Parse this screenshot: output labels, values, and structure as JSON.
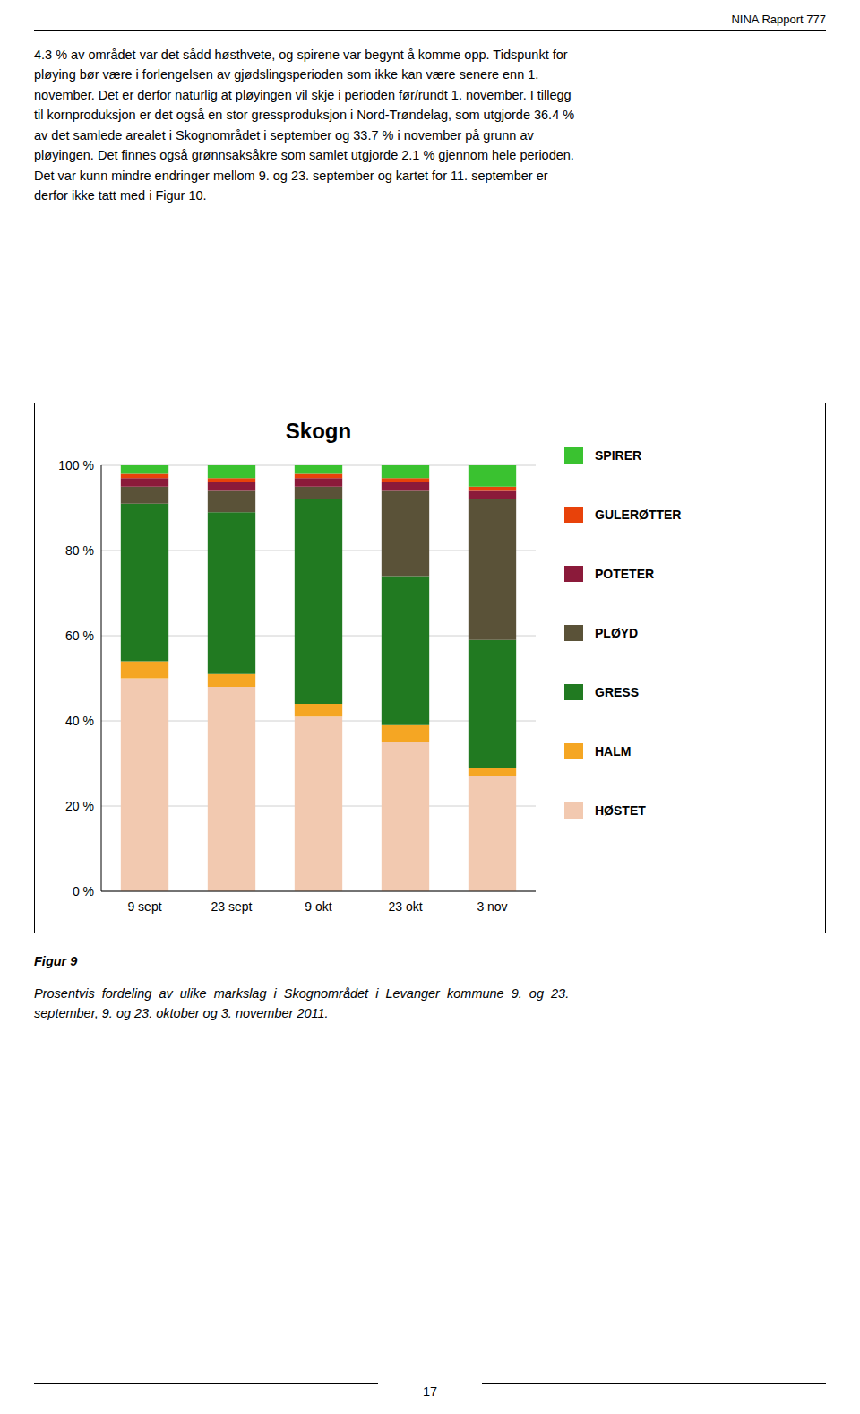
{
  "header_label": "NINA Rapport 777",
  "header_text": "4.3 % av området var det sådd høsthvete, og spirene var begynt å komme opp. Tidspunkt for\npløying bør være i forlengelsen av gjødslingsperioden som ikke kan være senere enn 1.\nnovember. Det er derfor naturlig at pløyingen vil skje i perioden før/rundt 1. november. I tillegg\ntil kornproduksjon er det også en stor gressproduksjon i Nord-Trøndelag, som utgjorde 36.4 %\nav det samlede arealet i Skognområdet i september og 33.7 % i november på grunn av\npløyingen. Det finnes også grønnsaksåkre som samlet utgjorde 2.1 % gjennom hele perioden.\nDet var kunn mindre endringer mellom 9. og 23. september og kartet for 11. september er\nderfor ikke tatt med i Figur 10.",
  "figure_label": "Figur 9",
  "caption_text": "Prosentvis  fordeling  av  ulike  markslag  i  Skognområdet  i  Levanger  kommune  9.  og  23.\nseptember, 9. og 23. oktober og 3. november 2011.",
  "page_number": "17",
  "chart_data": {
    "type": "bar",
    "stacked": true,
    "title": "Skogn",
    "categories": [
      "9 sept",
      "23 sept",
      "9 okt",
      "23 okt",
      "3 nov"
    ],
    "series": [
      {
        "name": "HØSTET",
        "color": "#F2C9B0",
        "values": [
          50,
          48,
          41,
          35,
          27
        ]
      },
      {
        "name": "HALM",
        "color": "#F5A623",
        "values": [
          4,
          3,
          3,
          4,
          2
        ]
      },
      {
        "name": "GRESS",
        "color": "#217A21",
        "values": [
          37,
          38,
          48,
          35,
          30
        ]
      },
      {
        "name": "PLØYD",
        "color": "#5A5238",
        "values": [
          4,
          5,
          3,
          20,
          33
        ]
      },
      {
        "name": "POTETER",
        "color": "#8B1A3A",
        "values": [
          2,
          2,
          2,
          2,
          2
        ]
      },
      {
        "name": "GULERØTTER",
        "color": "#E8420A",
        "values": [
          1,
          1,
          1,
          1,
          1
        ]
      },
      {
        "name": "SPIRER",
        "color": "#3AC230",
        "values": [
          2,
          3,
          2,
          3,
          5
        ]
      }
    ],
    "ylim": [
      0,
      100
    ],
    "yticks": [
      {
        "value": 0,
        "label": "0 %"
      },
      {
        "value": 20,
        "label": "20 %"
      },
      {
        "value": 40,
        "label": "40 %"
      },
      {
        "value": 60,
        "label": "60 %"
      },
      {
        "value": 80,
        "label": "80 %"
      },
      {
        "value": 100,
        "label": "100 %"
      }
    ],
    "grid": true,
    "legend": "right"
  }
}
